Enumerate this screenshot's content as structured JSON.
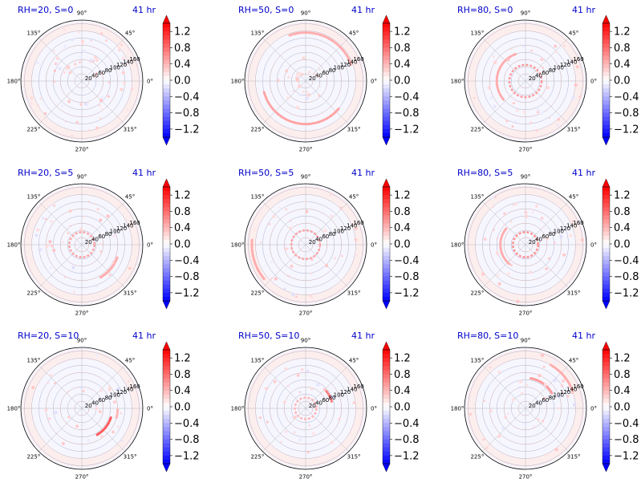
{
  "chart_data": {
    "type": "heatmap",
    "projection": "polar",
    "grid": true,
    "angular_ticks": [
      "0°",
      "45°",
      "90°",
      "135°",
      "180°",
      "225°",
      "270°",
      "315°"
    ],
    "radial_ticks": [
      20,
      40,
      60,
      80,
      100,
      120,
      140,
      160
    ],
    "rlim": [
      0,
      170
    ],
    "colorbar": {
      "cmap": "bwr",
      "colors": {
        "min": "#0000ff",
        "mid": "#ffffff",
        "max": "#ff0000"
      },
      "vlim": [
        -1.4,
        1.4
      ],
      "ticks": [
        1.2,
        0.8,
        0.4,
        0.0,
        -0.4,
        -0.8,
        -1.2
      ],
      "tick_labels": [
        "1.2",
        "0.8",
        "0.4",
        "0.0",
        "−0.4",
        "−0.8",
        "−1.2"
      ],
      "extend": "both"
    },
    "panels": [
      {
        "title": "RH=20, S=0",
        "time": "41 hr",
        "features": [
          {
            "type": "scatter",
            "value": 0.3,
            "rmin": 40,
            "rmax": 160,
            "count": 70
          }
        ]
      },
      {
        "title": "RH=50, S=0",
        "time": "41 hr",
        "features": [
          {
            "type": "arc",
            "value": 0.5,
            "r": 120,
            "a0": 195,
            "a1": 320
          },
          {
            "type": "arc",
            "value": 0.45,
            "r": 135,
            "a0": 20,
            "a1": 110
          },
          {
            "type": "scatter",
            "value": 0.3,
            "rmin": 20,
            "rmax": 80,
            "count": 25
          }
        ]
      },
      {
        "title": "RH=80, S=0",
        "time": "41 hr",
        "features": [
          {
            "type": "arc",
            "value": 0.55,
            "r": 45,
            "a0": 0,
            "a1": 360
          },
          {
            "type": "arc",
            "value": 0.45,
            "r": 80,
            "a0": 110,
            "a1": 220
          },
          {
            "type": "scatter",
            "value": 0.3,
            "rmin": 60,
            "rmax": 160,
            "count": 40
          }
        ]
      },
      {
        "title": "RH=20, S=5",
        "time": "41 hr",
        "features": [
          {
            "type": "arc",
            "value": 0.5,
            "r": 35,
            "a0": 0,
            "a1": 360
          },
          {
            "type": "arc",
            "value": 0.45,
            "r": 105,
            "a0": 300,
            "a1": 340
          },
          {
            "type": "scatter",
            "value": 0.3,
            "rmin": 40,
            "rmax": 150,
            "count": 35
          }
        ]
      },
      {
        "title": "RH=50, S=5",
        "time": "41 hr",
        "features": [
          {
            "type": "arc",
            "value": 0.5,
            "r": 40,
            "a0": 0,
            "a1": 360
          },
          {
            "type": "arc",
            "value": 0.45,
            "r": 150,
            "a0": 175,
            "a1": 220
          },
          {
            "type": "scatter",
            "value": 0.3,
            "rmin": 40,
            "rmax": 160,
            "count": 35
          }
        ]
      },
      {
        "title": "RH=80, S=5",
        "time": "41 hr",
        "features": [
          {
            "type": "arc",
            "value": 0.6,
            "r": 35,
            "a0": 0,
            "a1": 360
          },
          {
            "type": "arc",
            "value": 0.45,
            "r": 70,
            "a0": 140,
            "a1": 230
          },
          {
            "type": "scatter",
            "value": 0.3,
            "rmin": 60,
            "rmax": 160,
            "count": 35
          }
        ]
      },
      {
        "title": "RH=20, S=10",
        "time": "41 hr",
        "features": [
          {
            "type": "arc",
            "value": 0.9,
            "r": 85,
            "a0": 300,
            "a1": 345
          },
          {
            "type": "arc",
            "value": 0.4,
            "r": 100,
            "a0": 345,
            "a1": 360
          },
          {
            "type": "scatter",
            "value": 0.3,
            "rmin": 40,
            "rmax": 160,
            "count": 30
          }
        ]
      },
      {
        "title": "RH=50, S=10",
        "time": "41 hr",
        "features": [
          {
            "type": "arc",
            "value": 0.7,
            "r": 75,
            "a0": 15,
            "a1": 40
          },
          {
            "type": "arc",
            "value": 0.4,
            "r": 30,
            "a0": 0,
            "a1": 360
          },
          {
            "type": "scatter",
            "value": 0.3,
            "rmin": 40,
            "rmax": 150,
            "count": 30
          }
        ]
      },
      {
        "title": "RH=80, S=10",
        "time": "41 hr",
        "features": [
          {
            "type": "arc",
            "value": 0.55,
            "r": 85,
            "a0": 30,
            "a1": 80
          },
          {
            "type": "arc",
            "value": 0.45,
            "r": 140,
            "a0": 20,
            "a1": 60
          },
          {
            "type": "scatter",
            "value": 0.3,
            "rmin": 40,
            "rmax": 160,
            "count": 40
          }
        ]
      }
    ]
  }
}
